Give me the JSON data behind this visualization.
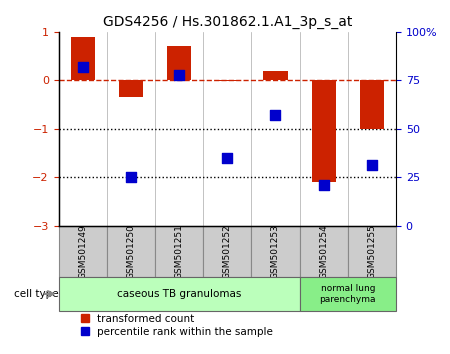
{
  "title": "GDS4256 / Hs.301862.1.A1_3p_s_at",
  "samples": [
    "GSM501249",
    "GSM501250",
    "GSM501251",
    "GSM501252",
    "GSM501253",
    "GSM501254",
    "GSM501255"
  ],
  "red_values": [
    0.9,
    -0.35,
    0.7,
    -0.02,
    0.2,
    -2.1,
    -1.0
  ],
  "blue_values": [
    0.28,
    -2.0,
    0.12,
    -1.6,
    -0.72,
    -2.15,
    -1.75
  ],
  "ylim_left": [
    -3,
    1
  ],
  "ylim_right": [
    0,
    100
  ],
  "yticks_left": [
    1,
    0,
    -1,
    -2,
    -3
  ],
  "yticks_right": [
    0,
    25,
    50,
    75,
    100
  ],
  "group1_indices": [
    0,
    1,
    2,
    3,
    4
  ],
  "group2_indices": [
    5,
    6
  ],
  "group1_label": "caseous TB granulomas",
  "group2_label": "normal lung\nparenchyma",
  "group1_color": "#bbffbb",
  "group2_color": "#88ee88",
  "cell_type_label": "cell type",
  "legend1_label": "transformed count",
  "legend2_label": "percentile rank within the sample",
  "red_color": "#cc2200",
  "blue_color": "#0000cc",
  "bar_width": 0.5,
  "dot_size": 50,
  "sample_box_color": "#cccccc",
  "hline0_color": "#cc2200",
  "hline_dot_color": "black"
}
